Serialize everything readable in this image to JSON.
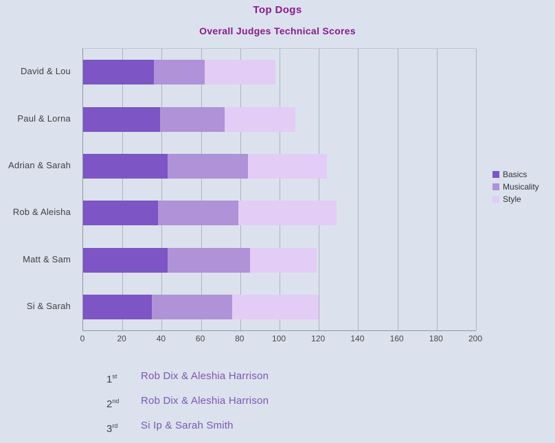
{
  "colors": {
    "background": "#dbe2ee",
    "title": "#8b1a8b",
    "gridline": "#adb3c0",
    "axis_text": "#474747",
    "rank_text": "#3c4254",
    "result_name_text": "#7a57b2"
  },
  "chart_data": {
    "type": "bar",
    "stacked": true,
    "orientation": "horizontal",
    "title": "Top Dogs",
    "subtitle": "Overall Judges Technical Scores",
    "categories": [
      "David & Lou",
      "Paul & Lorna",
      "Adrian & Sarah",
      "Rob & Aleisha",
      "Matt & Sam",
      "Si & Sarah"
    ],
    "series": [
      {
        "name": "Basics",
        "color": "#7d55c4",
        "values": [
          36,
          39,
          43,
          38,
          43,
          35
        ]
      },
      {
        "name": "Musicality",
        "color": "#b092d8",
        "values": [
          26,
          33,
          41,
          41,
          42,
          41
        ]
      },
      {
        "name": "Style",
        "color": "#e3ccf6",
        "values": [
          36,
          36,
          40,
          50,
          34,
          44
        ]
      }
    ],
    "xlim": [
      0,
      200
    ],
    "xticks": [
      0,
      20,
      40,
      60,
      80,
      100,
      120,
      140,
      160,
      180,
      200
    ],
    "grid": true,
    "legend_position": "right"
  },
  "results": {
    "items": [
      {
        "rank": "1",
        "suffix": "st",
        "name": "Rob Dix & Aleshia Harrison"
      },
      {
        "rank": "2",
        "suffix": "nd",
        "name": "Rob Dix & Aleshia Harrison"
      },
      {
        "rank": "3",
        "suffix": "rd",
        "name": "Si Ip & Sarah Smith"
      }
    ]
  }
}
